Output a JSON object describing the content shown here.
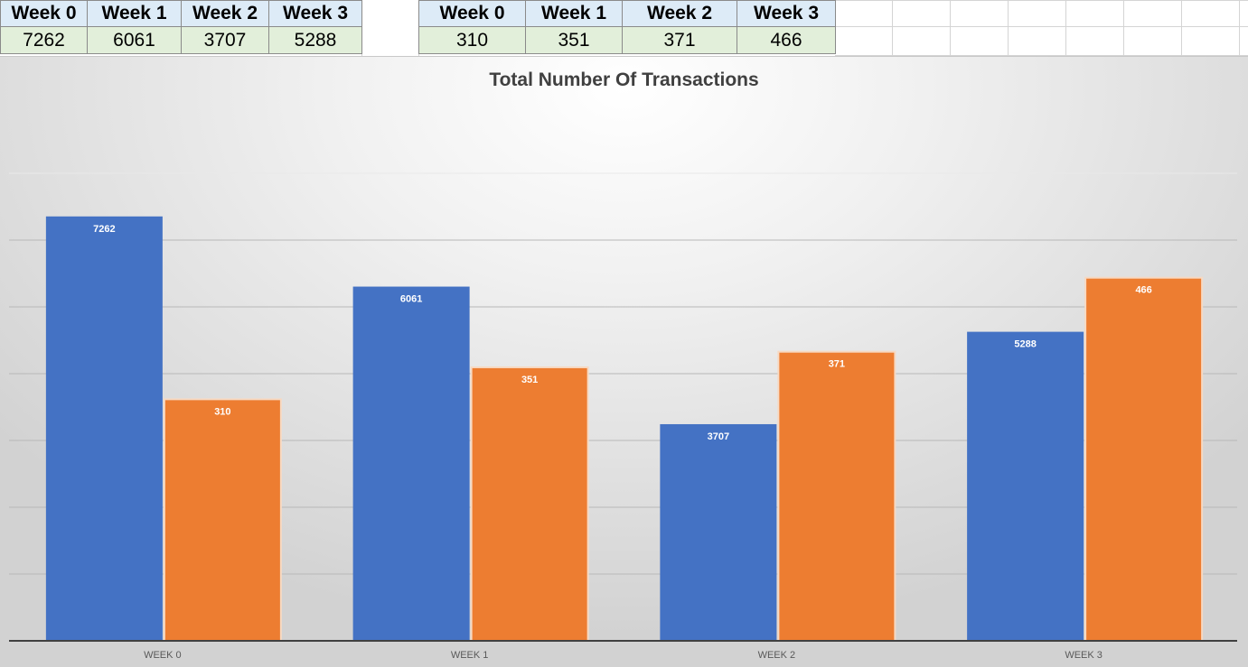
{
  "tables": [
    {
      "headers": [
        "Week 0",
        "Week 1",
        "Week 2",
        "Week 3"
      ],
      "values": [
        "7262",
        "6061",
        "3707",
        "5288"
      ]
    },
    {
      "headers": [
        "Week 0",
        "Week 1",
        "Week 2",
        "Week 3"
      ],
      "values": [
        "310",
        "351",
        "371",
        "466"
      ]
    }
  ],
  "chart_data": {
    "type": "bar",
    "title": "Total Number Of Transactions",
    "categories": [
      "WEEK 0",
      "WEEK 1",
      "WEEK 2",
      "WEEK 3"
    ],
    "series": [
      {
        "values": [
          7262,
          6061,
          3707,
          5288
        ],
        "color": "#4472c4"
      },
      {
        "values": [
          310,
          351,
          371,
          466
        ],
        "color": "#ed7d31"
      }
    ],
    "grid": true,
    "legend": "none",
    "colors": {
      "primary_axis_series": "#4472c4",
      "secondary_axis_series": "#ed7d31"
    }
  }
}
